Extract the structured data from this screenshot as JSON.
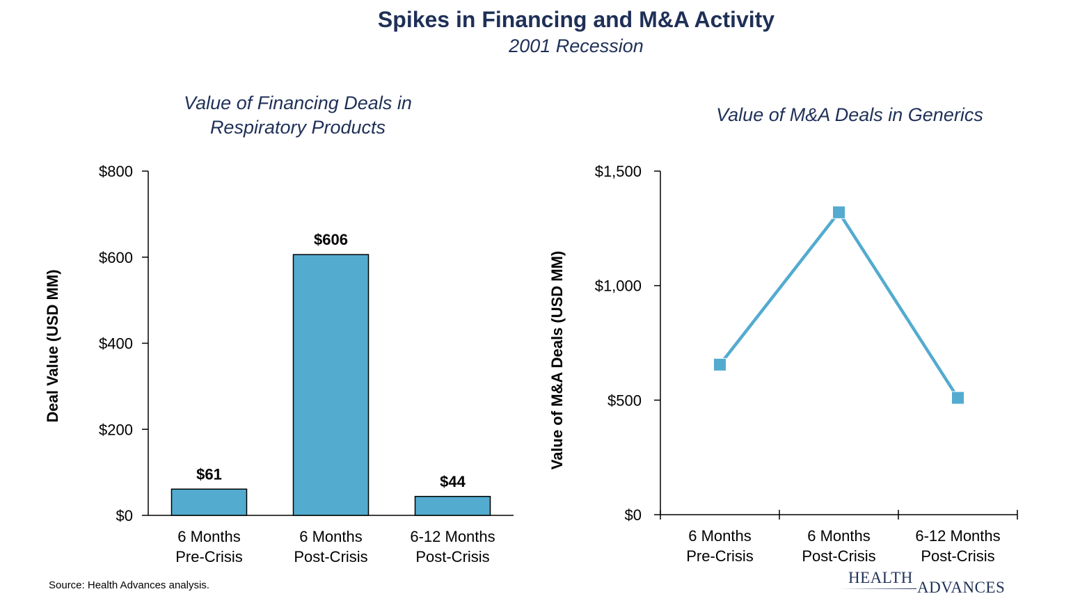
{
  "header": {
    "title": "Spikes in Financing and M&A Activity",
    "subtitle": "2001 Recession"
  },
  "chart_data": [
    {
      "type": "bar",
      "title_lines": [
        "Value of Financing Deals in",
        "Respiratory Products"
      ],
      "ylabel": "Deal Value (USD MM)",
      "categories": [
        [
          "6 Months",
          "Pre-Crisis"
        ],
        [
          "6 Months",
          "Post-Crisis"
        ],
        [
          "6-12 Months",
          "Post-Crisis"
        ]
      ],
      "values": [
        61,
        606,
        44
      ],
      "data_labels": [
        "$61",
        "$606",
        "$44"
      ],
      "ylim": [
        0,
        800
      ],
      "yticks": [
        0,
        200,
        400,
        600,
        800
      ],
      "ytick_labels": [
        "$0",
        "$200",
        "$400",
        "$600",
        "$800"
      ],
      "grid": false,
      "color": "#53ABCF"
    },
    {
      "type": "line",
      "title_lines": [
        "Value of M&A Deals in Generics"
      ],
      "ylabel": "Value of M&A Deals (USD MM)",
      "categories": [
        [
          "6 Months",
          "Pre-Crisis"
        ],
        [
          "6 Months",
          "Post-Crisis"
        ],
        [
          "6-12 Months",
          "Post-Crisis"
        ]
      ],
      "values": [
        655,
        1320,
        510
      ],
      "ylim": [
        0,
        1500
      ],
      "yticks": [
        0,
        500,
        1000,
        1500
      ],
      "ytick_labels": [
        "$0",
        "$500",
        "$1,000",
        "$1,500"
      ],
      "grid": false,
      "color": "#53ABCF"
    }
  ],
  "footer": {
    "source": "Source:  Health Advances analysis.",
    "logo_line1": "HEALTH",
    "logo_line2": "ADVANCES"
  }
}
